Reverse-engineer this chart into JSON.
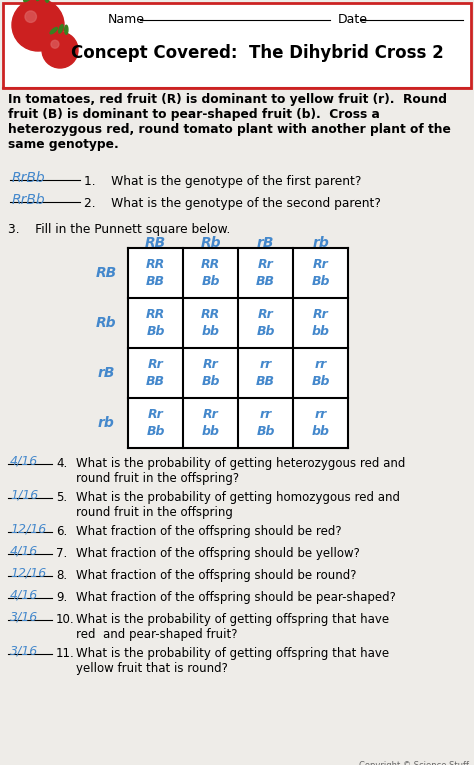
{
  "title": "Concept Covered:  The Dihybrid Cross 2",
  "name_label": "Name",
  "date_label": "Date",
  "intro_text": "In tomatoes, red fruit (R) is dominant to yellow fruit (r).  Round\nfruit (B) is dominant to pear-shaped fruit (b).  Cross a\nheterozygous red, round tomato plant with another plant of the\nsame genotype.",
  "q1_answer": "RrBb",
  "q2_answer": "RrBb",
  "q1_text": "1.    What is the genotype of the first parent?",
  "q2_text": "2.    What is the genotype of the second parent?",
  "q3_text": "3.    Fill in the Punnett square below.",
  "col_headers": [
    "RB",
    "Rb",
    "rB",
    "rb"
  ],
  "row_headers": [
    "RB",
    "Rb",
    "rB",
    "rb"
  ],
  "cells": [
    [
      "RR\nBB",
      "RR\nBb",
      "Rr\nBB",
      "Rr\nBb"
    ],
    [
      "RR\nBb",
      "RR\nbb",
      "Rr\nBb",
      "Rr\nbb"
    ],
    [
      "Rr\nBB",
      "Rr\nBb",
      "rr\nBB",
      "rr\nBb"
    ],
    [
      "Rr\nBb",
      "Rr\nbb",
      "rr\nBb",
      "rr\nbb"
    ]
  ],
  "questions": [
    {
      "num": "4.",
      "ans": "4/16",
      "text": "What is the probability of getting heterozygous red and\nround fruit in the offspring?",
      "two_line": true
    },
    {
      "num": "5.",
      "ans": "1/16",
      "text": "What is the probability of getting homozygous red and\nround fruit in the offspring",
      "two_line": true
    },
    {
      "num": "6.",
      "ans": "12/16",
      "text": "What fraction of the offspring should be red?",
      "two_line": false
    },
    {
      "num": "7.",
      "ans": "4/16",
      "text": "What fraction of the offspring should be yellow?",
      "two_line": false
    },
    {
      "num": "8.",
      "ans": "12/16",
      "text": "What fraction of the offspring should be round?",
      "two_line": false
    },
    {
      "num": "9.",
      "ans": "4/16",
      "text": "What fraction of the offspring should be pear-shaped?",
      "two_line": false
    },
    {
      "num": "10.",
      "ans": "3/16",
      "text": "What is the probability of getting offspring that have\nred  and pear-shaped fruit?",
      "two_line": true
    },
    {
      "num": "11.",
      "ans": "3/16",
      "text": "What is the probability of getting offspring that have\nyellow fruit that is round?",
      "two_line": true
    }
  ],
  "bg_color": "#eeece8",
  "cell_text_color": "#4488cc",
  "handwriting_color": "#4488cc",
  "copyright": "Copyright © Science Stuff"
}
